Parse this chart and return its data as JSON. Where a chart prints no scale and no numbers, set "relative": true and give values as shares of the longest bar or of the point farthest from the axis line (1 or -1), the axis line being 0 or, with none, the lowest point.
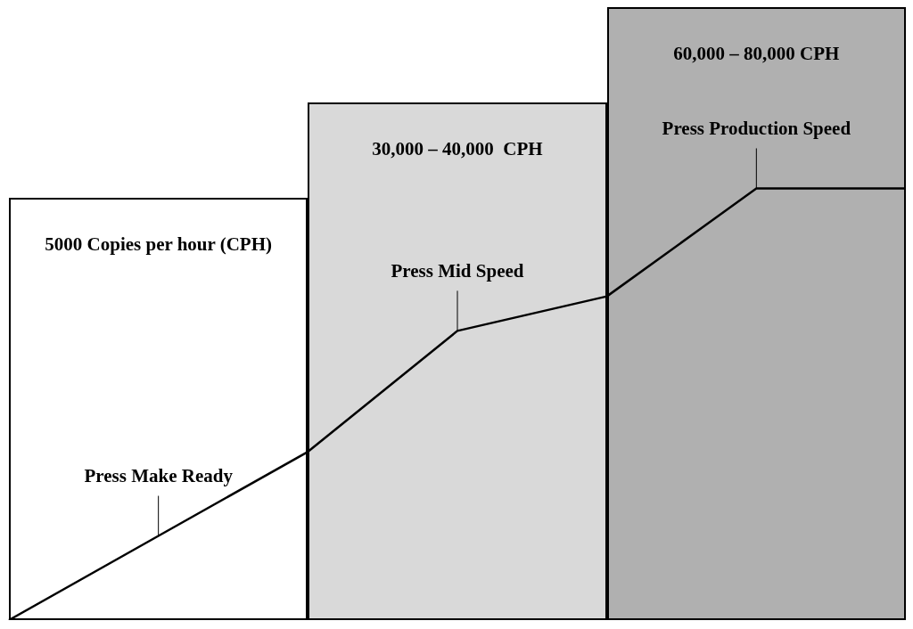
{
  "chart_data": {
    "type": "line",
    "relative": true,
    "tick_labels": false,
    "legend": false,
    "marker": "none",
    "line_style": "solid",
    "categories": [
      null,
      null,
      null,
      null,
      null,
      null,
      null
    ],
    "series": [
      {
        "color": "#000000",
        "values": [
          0,
          0.195,
          0.39,
          0.67,
          0.75,
          1,
          1
        ]
      }
    ],
    "annotations": [
      "5000 Copies per hour (CPH)",
      "30,000 – 40,000  CPH",
      "60,000 – 80,000 CPH",
      "Press Make Ready",
      "Press Mid Speed",
      "Press Production Speed"
    ]
  }
}
